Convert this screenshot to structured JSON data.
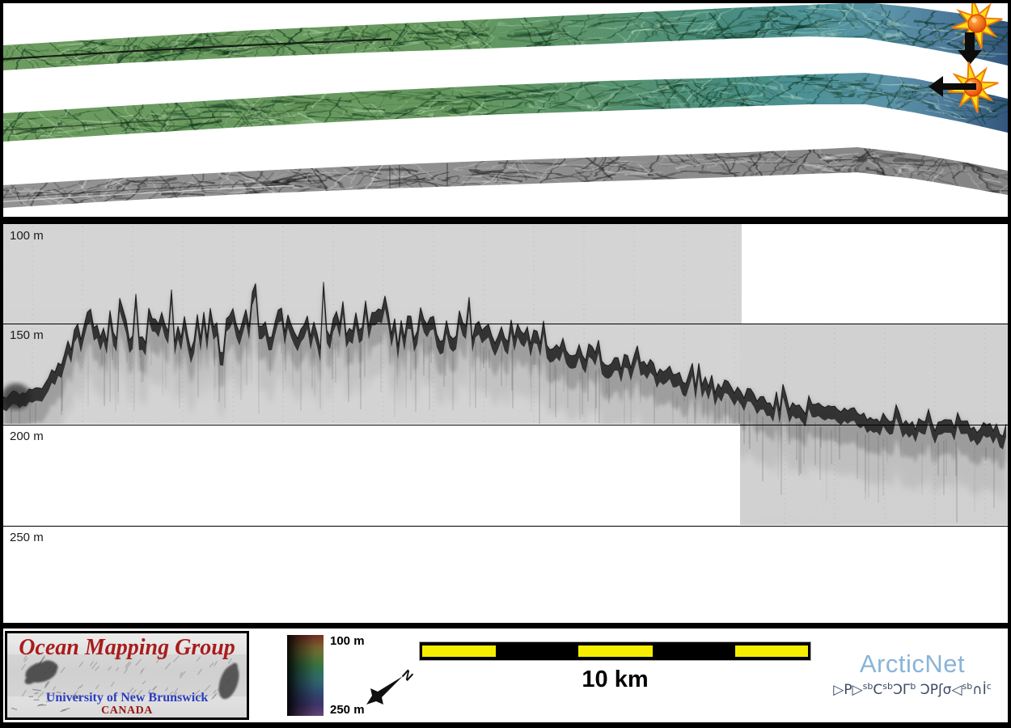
{
  "swath_panel": {
    "description_markers": [
      {
        "icon": "starburst-icon",
        "arrow": "down"
      },
      {
        "icon": "starburst-icon",
        "arrow": "left"
      }
    ]
  },
  "icons": {
    "starburst": "starburst-explosion",
    "down_arrow": "↓",
    "left_arrow": "←",
    "compass_rose": "north-arrow"
  },
  "echogram": {
    "depth_labels": [
      {
        "text": "100 m",
        "depth_m": 100
      },
      {
        "text": "150 m",
        "depth_m": 150
      },
      {
        "text": "200 m",
        "depth_m": 200
      },
      {
        "text": "250 m",
        "depth_m": 250
      }
    ],
    "seafloor_profile_m": [
      [
        4,
        186
      ],
      [
        50,
        182
      ],
      [
        75,
        168
      ],
      [
        110,
        152
      ],
      [
        300,
        151
      ],
      [
        620,
        152
      ],
      [
        700,
        162
      ],
      [
        780,
        170
      ],
      [
        860,
        178
      ],
      [
        940,
        186
      ],
      [
        1020,
        193
      ],
      [
        1100,
        198
      ],
      [
        1160,
        201
      ],
      [
        1246,
        203
      ]
    ]
  },
  "legend": {
    "omg_logo": {
      "title": "Ocean Mapping Group",
      "university": "University of New Brunswick",
      "country": "CANADA"
    },
    "colorbar": {
      "top_label": "100 m",
      "bottom_label": "250 m"
    },
    "compass": {
      "north_label": "N"
    },
    "scale_bar": {
      "label": "10 km"
    },
    "arcticnet": {
      "name": "ArcticNet",
      "inuktitut_parts": [
        "▷P▷",
        "sb",
        "C",
        "sb",
        "ƆΓ",
        "b",
        " ƆPʃσ◁",
        "sb",
        "∩İ",
        "c"
      ]
    }
  }
}
